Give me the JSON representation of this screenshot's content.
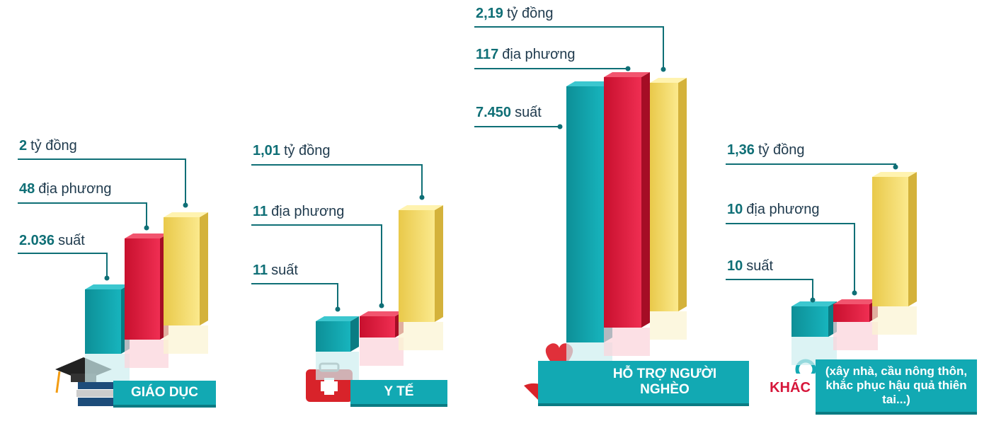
{
  "groups": [
    {
      "label": "GIÁO DỤC",
      "items": [
        {
          "value": "2.036",
          "unit": "suất"
        },
        {
          "value": "48",
          "unit": "địa phương"
        },
        {
          "value": "2",
          "unit": "tỷ đồng"
        }
      ]
    },
    {
      "label": "Y TẾ",
      "items": [
        {
          "value": "11",
          "unit": "suất"
        },
        {
          "value": "11",
          "unit": "địa phương"
        },
        {
          "value": "1,01",
          "unit": "tỷ đồng"
        }
      ]
    },
    {
      "label": "HỖ TRỢ NGƯỜI NGHÈO",
      "items": [
        {
          "value": "7.450",
          "unit": "suất"
        },
        {
          "value": "117",
          "unit": "địa phương"
        },
        {
          "value": "2,19",
          "unit": "tỷ đồng"
        }
      ]
    },
    {
      "label": "KHÁC",
      "note": "(xây nhà, cầu nông thôn, khắc phục hậu quả thiên tai...)",
      "items": [
        {
          "value": "10",
          "unit": "suất"
        },
        {
          "value": "10",
          "unit": "địa phương"
        },
        {
          "value": "1,36",
          "unit": "tỷ đồng"
        }
      ]
    }
  ]
}
